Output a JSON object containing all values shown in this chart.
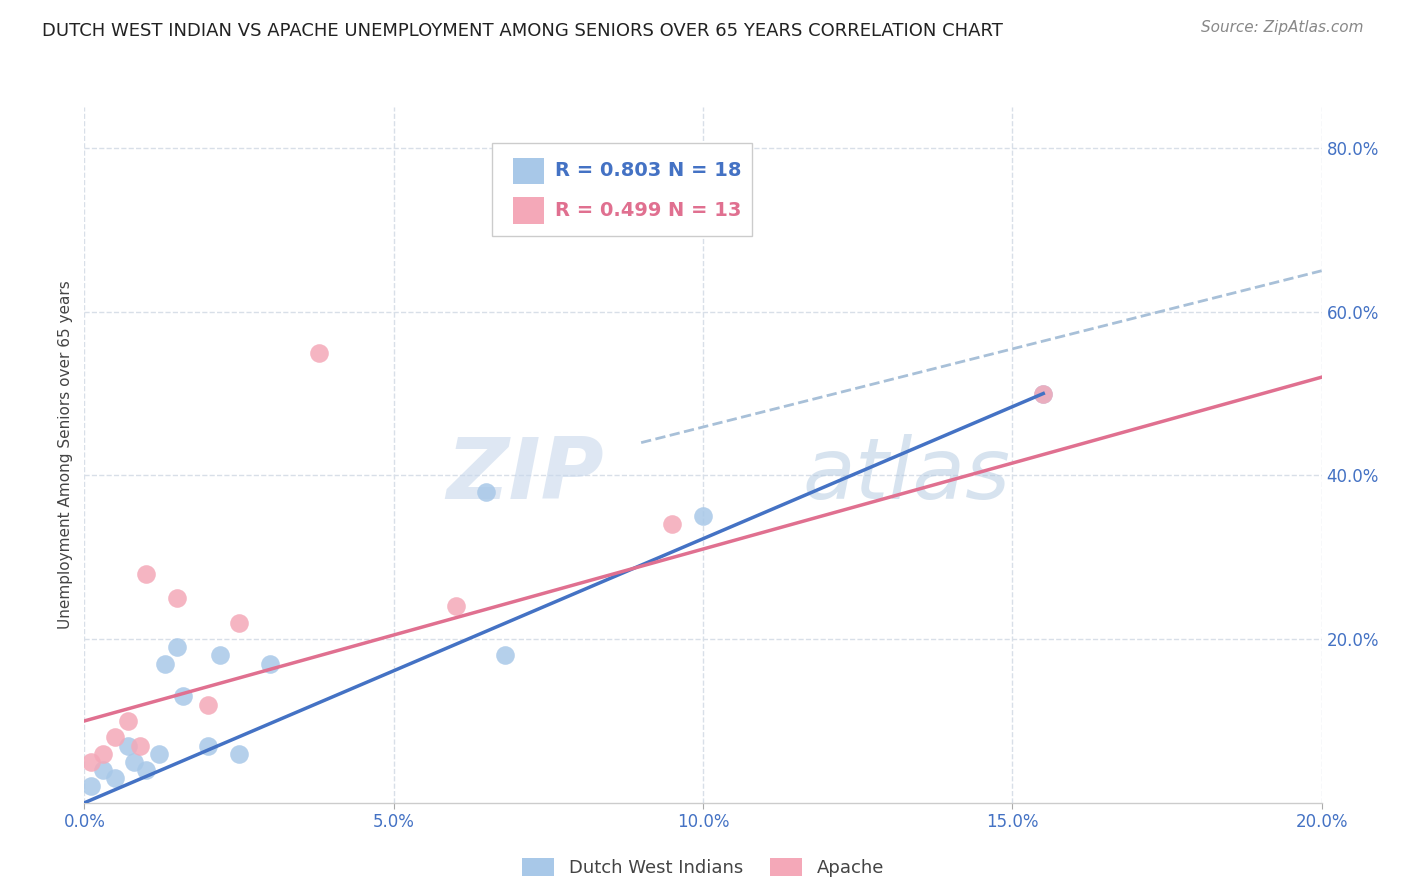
{
  "title": "DUTCH WEST INDIAN VS APACHE UNEMPLOYMENT AMONG SENIORS OVER 65 YEARS CORRELATION CHART",
  "source": "Source: ZipAtlas.com",
  "ylabel": "Unemployment Among Seniors over 65 years",
  "xlim": [
    0.0,
    0.2
  ],
  "ylim": [
    0.0,
    0.85
  ],
  "xticks": [
    0.0,
    0.05,
    0.1,
    0.15,
    0.2
  ],
  "xtick_labels": [
    "0.0%",
    "5.0%",
    "10.0%",
    "15.0%",
    "20.0%"
  ],
  "yticks_right": [
    0.2,
    0.4,
    0.6,
    0.8
  ],
  "ytick_labels_right": [
    "20.0%",
    "40.0%",
    "60.0%",
    "80.0%"
  ],
  "xticks_bottom_show": [
    0.0,
    0.2
  ],
  "xtick_labels_bottom_show": [
    "0.0%",
    "20.0%"
  ],
  "blue_r": 0.803,
  "blue_n": 18,
  "pink_r": 0.499,
  "pink_n": 13,
  "blue_dot_color": "#a8c8e8",
  "pink_dot_color": "#f4a8b8",
  "blue_line_color": "#4472c4",
  "pink_line_color": "#e07090",
  "dashed_line_color": "#a8c0d8",
  "legend_border_color": "#cccccc",
  "legend_r_color_blue": "#4472c4",
  "legend_r_color_pink": "#e07090",
  "grid_color": "#d8dfe8",
  "watermark": "ZIPatlas",
  "watermark_color_zip": "#c8d8ec",
  "watermark_color_atlas": "#b0c8e0",
  "title_fontsize": 13,
  "source_fontsize": 11,
  "axis_label_fontsize": 11,
  "tick_fontsize": 12,
  "legend_fontsize": 14,
  "blue_x": [
    0.001,
    0.003,
    0.005,
    0.007,
    0.008,
    0.01,
    0.012,
    0.013,
    0.015,
    0.016,
    0.02,
    0.022,
    0.025,
    0.03,
    0.065,
    0.068,
    0.1,
    0.155
  ],
  "blue_y": [
    0.02,
    0.04,
    0.03,
    0.07,
    0.05,
    0.04,
    0.06,
    0.17,
    0.19,
    0.13,
    0.07,
    0.18,
    0.06,
    0.17,
    0.38,
    0.18,
    0.35,
    0.5
  ],
  "pink_x": [
    0.001,
    0.003,
    0.005,
    0.007,
    0.009,
    0.01,
    0.015,
    0.02,
    0.025,
    0.038,
    0.06,
    0.095,
    0.155
  ],
  "pink_y": [
    0.05,
    0.06,
    0.08,
    0.1,
    0.07,
    0.28,
    0.25,
    0.12,
    0.22,
    0.55,
    0.24,
    0.34,
    0.5
  ],
  "blue_line_x": [
    0.0,
    0.155
  ],
  "blue_line_y": [
    0.0,
    0.5
  ],
  "pink_line_x": [
    0.0,
    0.2
  ],
  "pink_line_y": [
    0.1,
    0.52
  ],
  "dashed_line_x": [
    0.09,
    0.2
  ],
  "dashed_line_y": [
    0.44,
    0.65
  ],
  "bottom_legend_items": [
    "Dutch West Indians",
    "Apache"
  ]
}
